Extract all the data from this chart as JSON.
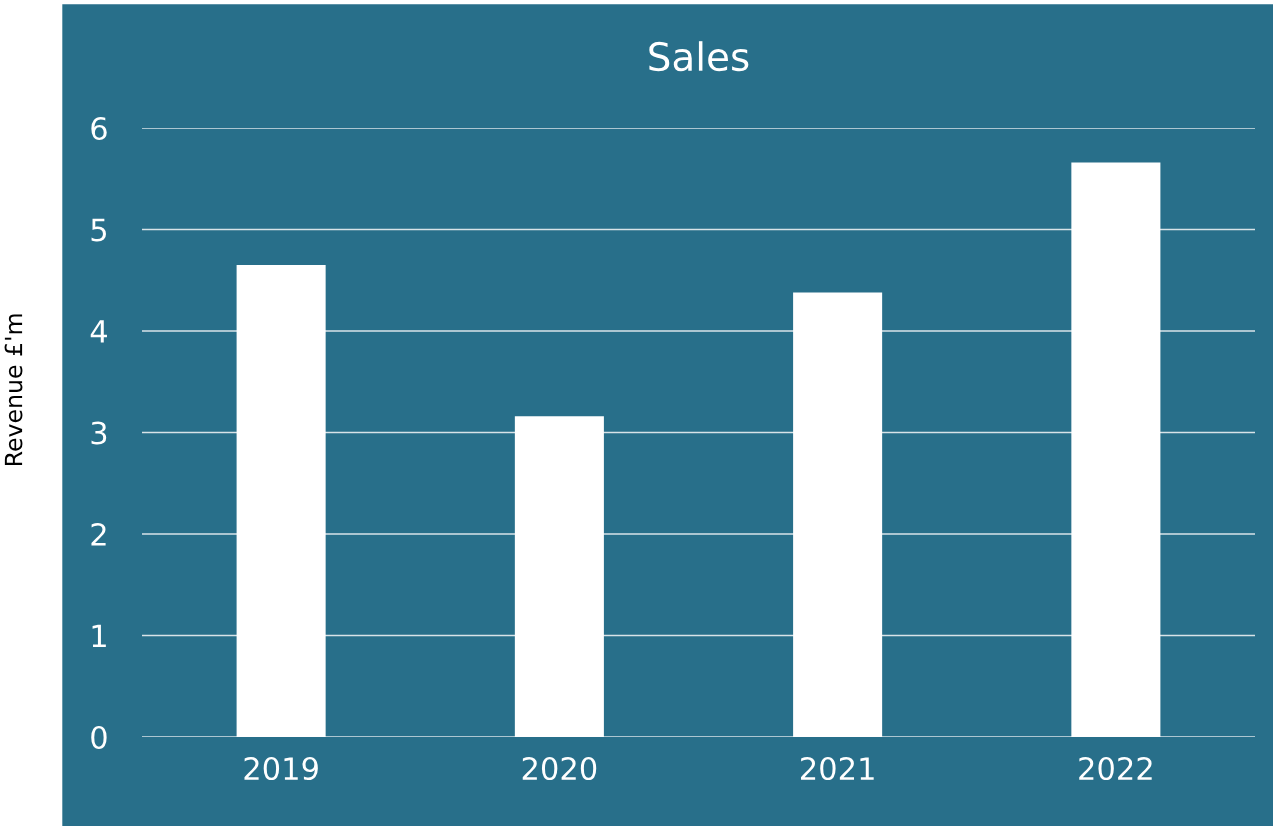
{
  "chart_data": {
    "type": "bar",
    "title": "Sales",
    "ylabel": "Revenue £'m",
    "categories": [
      "2019",
      "2020",
      "2021",
      "2022"
    ],
    "values": [
      4.65,
      3.16,
      4.38,
      5.66
    ],
    "color": "#ffffff",
    "ylim": [
      0,
      6
    ],
    "yticks": [
      0,
      1,
      2,
      3,
      4,
      5,
      6
    ],
    "grid": "y",
    "legend": false
  }
}
